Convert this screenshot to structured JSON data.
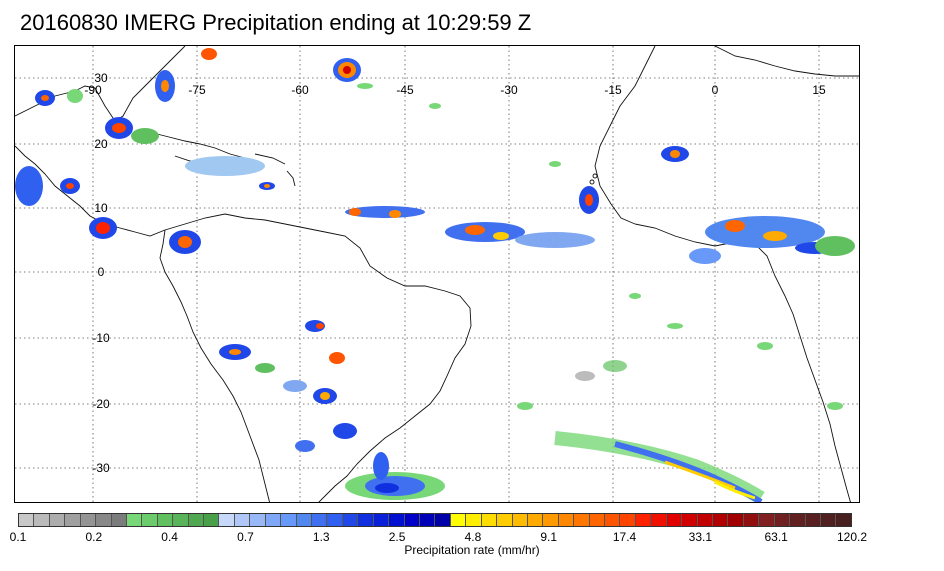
{
  "title": "20160830 IMERG Precipitation ending at 10:29:59 Z",
  "map": {
    "lon_labels": [
      "-90",
      "-75",
      "-60",
      "-45",
      "-30",
      "-15",
      "0",
      "15"
    ],
    "lat_labels": [
      "30",
      "20",
      "10",
      "0",
      "-10",
      "-20",
      "-30"
    ]
  },
  "colorbar": {
    "label": "Precipitation rate (mm/hr)",
    "tick_labels": [
      "0.1",
      "0.2",
      "0.4",
      "0.7",
      "1.3",
      "2.5",
      "4.8",
      "9.1",
      "17.4",
      "33.1",
      "63.1",
      "120.2"
    ],
    "colors": [
      "#c8c8c8",
      "#bababa",
      "#adadad",
      "#a0a0a0",
      "#949494",
      "#888888",
      "#7c7c7c",
      "#78d878",
      "#6ccc6c",
      "#60c060",
      "#58b458",
      "#50a850",
      "#48a048",
      "#c8d8f8",
      "#b0c8f8",
      "#98b8f8",
      "#80a8f8",
      "#6898f8",
      "#5088f0",
      "#4070f0",
      "#3060f0",
      "#2048e8",
      "#1030e0",
      "#0820d8",
      "#0010d0",
      "#0000c8",
      "#0000b8",
      "#0000a8",
      "#ffff00",
      "#ffee00",
      "#ffdd00",
      "#ffcc00",
      "#ffbb00",
      "#ffaa00",
      "#ff9900",
      "#ff8800",
      "#ff7700",
      "#ff6600",
      "#ff5500",
      "#ff4400",
      "#ff2200",
      "#f01000",
      "#e00000",
      "#d00000",
      "#c00000",
      "#b00000",
      "#a00000",
      "#901010",
      "#802020",
      "#702020",
      "#602020",
      "#582020",
      "#502020",
      "#482020"
    ]
  }
}
